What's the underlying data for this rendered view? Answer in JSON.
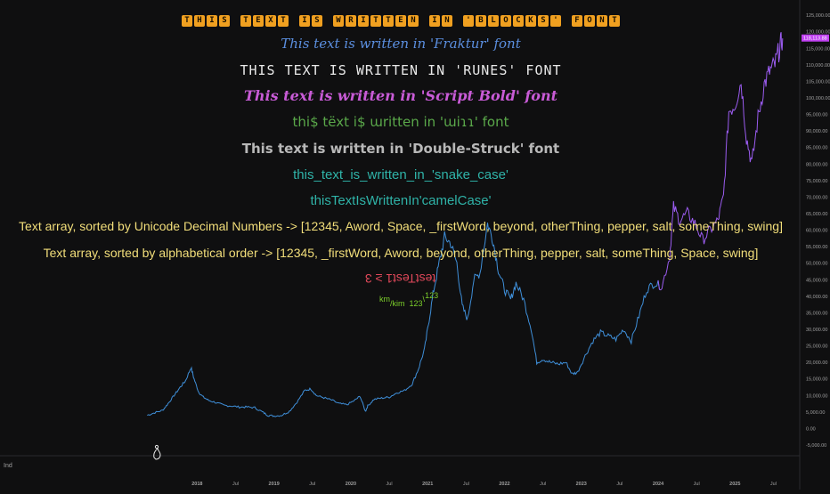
{
  "texts": {
    "blocks": "THIS TEXT IS WRITTEN IN 'BLOCKS' FONT",
    "fraktur": "This text is written in 'Fraktur' font",
    "runes": "THIS TEXT IS WRITTEN IN 'RUNES' FONT",
    "script_bold": "This text is written in 'Script Bold' font",
    "weird": "thi$ tëxt i$ ɯritten in 'ɯiɿɿ' font",
    "double_struck": "This text is written in 'Double-Struck' font",
    "snake_case": "this_text_is_written_in_'snake_case'",
    "camel_case": "thisTextIsWrittenIn'camelCase'",
    "array_unicode": "Text array, sorted by Unicode Decimal Numbers -> [12345, Aword, Space, _firstWord, beyond, otherThing, pepper, salt, someThing, swing]",
    "array_alpha": "Text array, sorted by alphabetical order -> [12345, _firstWord, Aword, beyond, otherThing, pepper, salt, someThing, Space, swing]",
    "flipped": "testTest1 ≥ 3",
    "units_km": "km",
    "units_kim": "/kim",
    "units_123a": "123",
    "units_123b": "123"
  },
  "colors": {
    "background": "#0f0f10",
    "price_line_early": "#3f8fd9",
    "price_line_late": "#9b5cf0",
    "price_badge": "#c040f0",
    "blocks": "#f0a020",
    "axis_text": "#a0a0a0"
  },
  "chart_data": {
    "type": "line",
    "title": "",
    "xlabel": "",
    "ylabel": "",
    "ylim": [
      -5000,
      128000
    ],
    "y_ticks": [
      "125,000.00",
      "120,000.00",
      "115,000.00",
      "110,000.00",
      "105,000.00",
      "100,000.00",
      "95,000.00",
      "90,000.00",
      "85,000.00",
      "80,000.00",
      "75,000.00",
      "70,000.00",
      "65,000.00",
      "60,000.00",
      "55,000.00",
      "50,000.00",
      "45,000.00",
      "40,000.00",
      "35,000.00",
      "30,000.00",
      "25,000.00",
      "20,000.00",
      "15,000.00",
      "10,000.00",
      "5,000.00",
      "0.00",
      "-5,000.00"
    ],
    "y_tick_values": [
      125000,
      120000,
      115000,
      110000,
      105000,
      100000,
      95000,
      90000,
      85000,
      80000,
      75000,
      70000,
      65000,
      60000,
      55000,
      50000,
      45000,
      40000,
      35000,
      30000,
      25000,
      20000,
      15000,
      10000,
      5000,
      0,
      -5000
    ],
    "x_ticks": [
      {
        "label": "2018",
        "t": 2018.0
      },
      {
        "label": "Jul",
        "t": 2018.5
      },
      {
        "label": "2019",
        "t": 2019.0
      },
      {
        "label": "Jul",
        "t": 2019.5
      },
      {
        "label": "2020",
        "t": 2020.0
      },
      {
        "label": "Jul",
        "t": 2020.5
      },
      {
        "label": "2021",
        "t": 2021.0
      },
      {
        "label": "Jul",
        "t": 2021.5
      },
      {
        "label": "2022",
        "t": 2022.0
      },
      {
        "label": "Jul",
        "t": 2022.5
      },
      {
        "label": "2023",
        "t": 2023.0
      },
      {
        "label": "Jul",
        "t": 2023.5
      },
      {
        "label": "2024",
        "t": 2024.0
      },
      {
        "label": "Jul",
        "t": 2024.5
      },
      {
        "label": "2025",
        "t": 2025.0
      },
      {
        "label": "Jul",
        "t": 2025.5
      }
    ],
    "last_price_label": "118,113.88",
    "last_price": 118113.88,
    "pane_label": "Ind",
    "series": [
      {
        "x": [
          2017.35,
          2017.45,
          2017.55,
          2017.62,
          2017.7,
          2017.78,
          2017.85,
          2017.92,
          2017.96,
          2018.02,
          2018.08,
          2018.15,
          2018.25,
          2018.35,
          2018.45,
          2018.55,
          2018.65,
          2018.75,
          2018.85,
          2018.92,
          2019.0,
          2019.1,
          2019.2,
          2019.3,
          2019.4,
          2019.48,
          2019.55,
          2019.65,
          2019.75,
          2019.85,
          2019.95,
          2020.05,
          2020.12,
          2020.19,
          2020.22,
          2020.3,
          2020.4,
          2020.5,
          2020.6,
          2020.7,
          2020.8,
          2020.88,
          2020.96,
          2021.02,
          2021.08,
          2021.15,
          2021.22,
          2021.3,
          2021.38,
          2021.45,
          2021.52,
          2021.6,
          2021.68,
          2021.78,
          2021.85,
          2021.92,
          2022.0,
          2022.08,
          2022.15,
          2022.25,
          2022.35,
          2022.42,
          2022.5,
          2022.6,
          2022.7,
          2022.8,
          2022.88,
          2022.95,
          2023.05,
          2023.15,
          2023.25,
          2023.35,
          2023.45,
          2023.55,
          2023.65,
          2023.75,
          2023.85,
          2023.95,
          2024.05,
          2024.15,
          2024.2,
          2024.28,
          2024.38,
          2024.48,
          2024.58,
          2024.68,
          2024.78,
          2024.85,
          2024.92,
          2025.0,
          2025.08,
          2025.15,
          2025.22,
          2025.3,
          2025.38,
          2025.45,
          2025.52,
          2025.58,
          2025.62
        ],
        "y": [
          4000,
          4800,
          5500,
          7500,
          10000,
          12500,
          14500,
          18500,
          15000,
          11000,
          9500,
          8500,
          7800,
          7000,
          6800,
          6500,
          6500,
          6300,
          5000,
          4000,
          3800,
          4000,
          5200,
          8000,
          11500,
          12000,
          10000,
          9300,
          8600,
          7500,
          7200,
          8500,
          9800,
          5200,
          6800,
          8800,
          9200,
          9500,
          10800,
          11500,
          13500,
          18000,
          24000,
          33000,
          42000,
          50000,
          58000,
          56000,
          50000,
          37000,
          33000,
          45000,
          47000,
          62000,
          57000,
          48000,
          42000,
          39000,
          44000,
          39000,
          30000,
          20000,
          21000,
          20000,
          19500,
          20000,
          16500,
          17000,
          22000,
          26500,
          29000,
          28000,
          27000,
          30000,
          26500,
          34000,
          42000,
          44000,
          43000,
          52000,
          67000,
          63000,
          65000,
          62000,
          57000,
          60000,
          63000,
          70000,
          96000,
          98000,
          105000,
          88000,
          80000,
          94000,
          104000,
          108000,
          110000,
          115000,
          118000
        ]
      }
    ]
  }
}
